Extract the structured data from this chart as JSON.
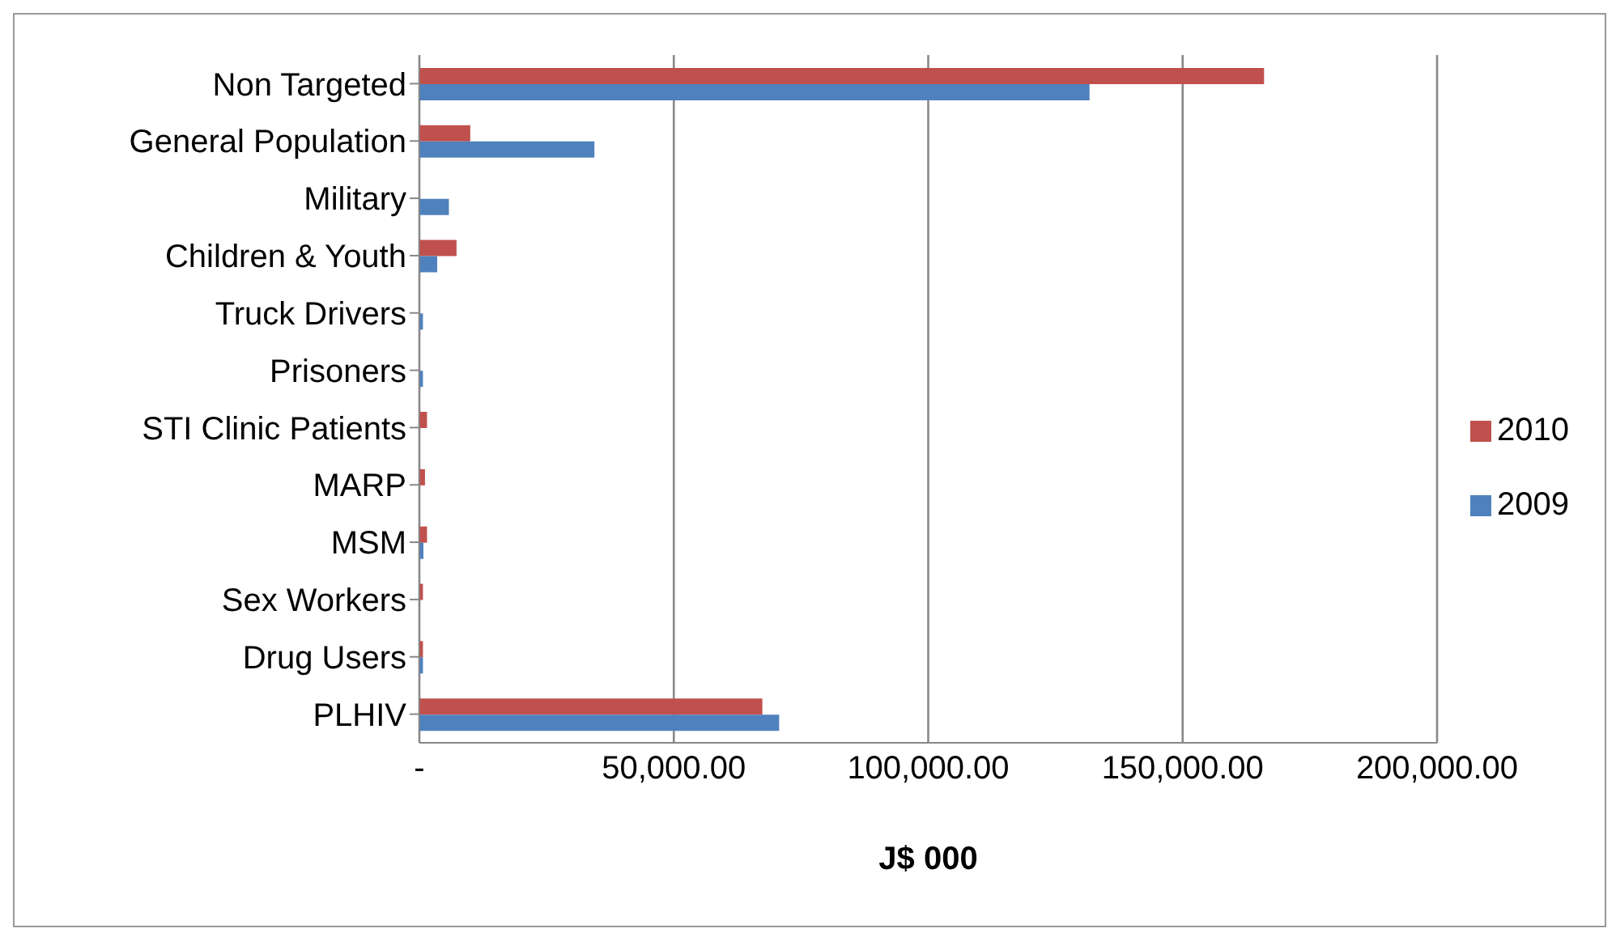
{
  "chart_data": {
    "type": "bar",
    "orientation": "horizontal",
    "xlabel": "J$ 000",
    "categories": [
      "Non Targeted",
      "General Population",
      "Military",
      "Children & Youth",
      "Truck Drivers",
      "Prisoners",
      "STI Clinic Patients",
      "MARP",
      "MSM",
      "Sex Workers",
      "Drug Users",
      "PLHIV"
    ],
    "series": [
      {
        "name": "2010",
        "color": "#c0504d",
        "values": [
          166000,
          10000,
          null,
          7300,
          null,
          null,
          1500,
          1100,
          1500,
          700,
          700,
          67400
        ]
      },
      {
        "name": "2009",
        "color": "#4f81bd",
        "values": [
          131700,
          34400,
          5800,
          3500,
          700,
          700,
          null,
          null,
          800,
          null,
          700,
          70700
        ]
      }
    ],
    "xlim": [
      0,
      200000
    ],
    "xticks": [
      {
        "value": 0,
        "label": "-"
      },
      {
        "value": 50000,
        "label": "50,000.00"
      },
      {
        "value": 100000,
        "label": "100,000.00"
      },
      {
        "value": 150000,
        "label": "150,000.00"
      },
      {
        "value": 200000,
        "label": "200,000.00"
      }
    ],
    "grid": "x",
    "legend": "right"
  }
}
